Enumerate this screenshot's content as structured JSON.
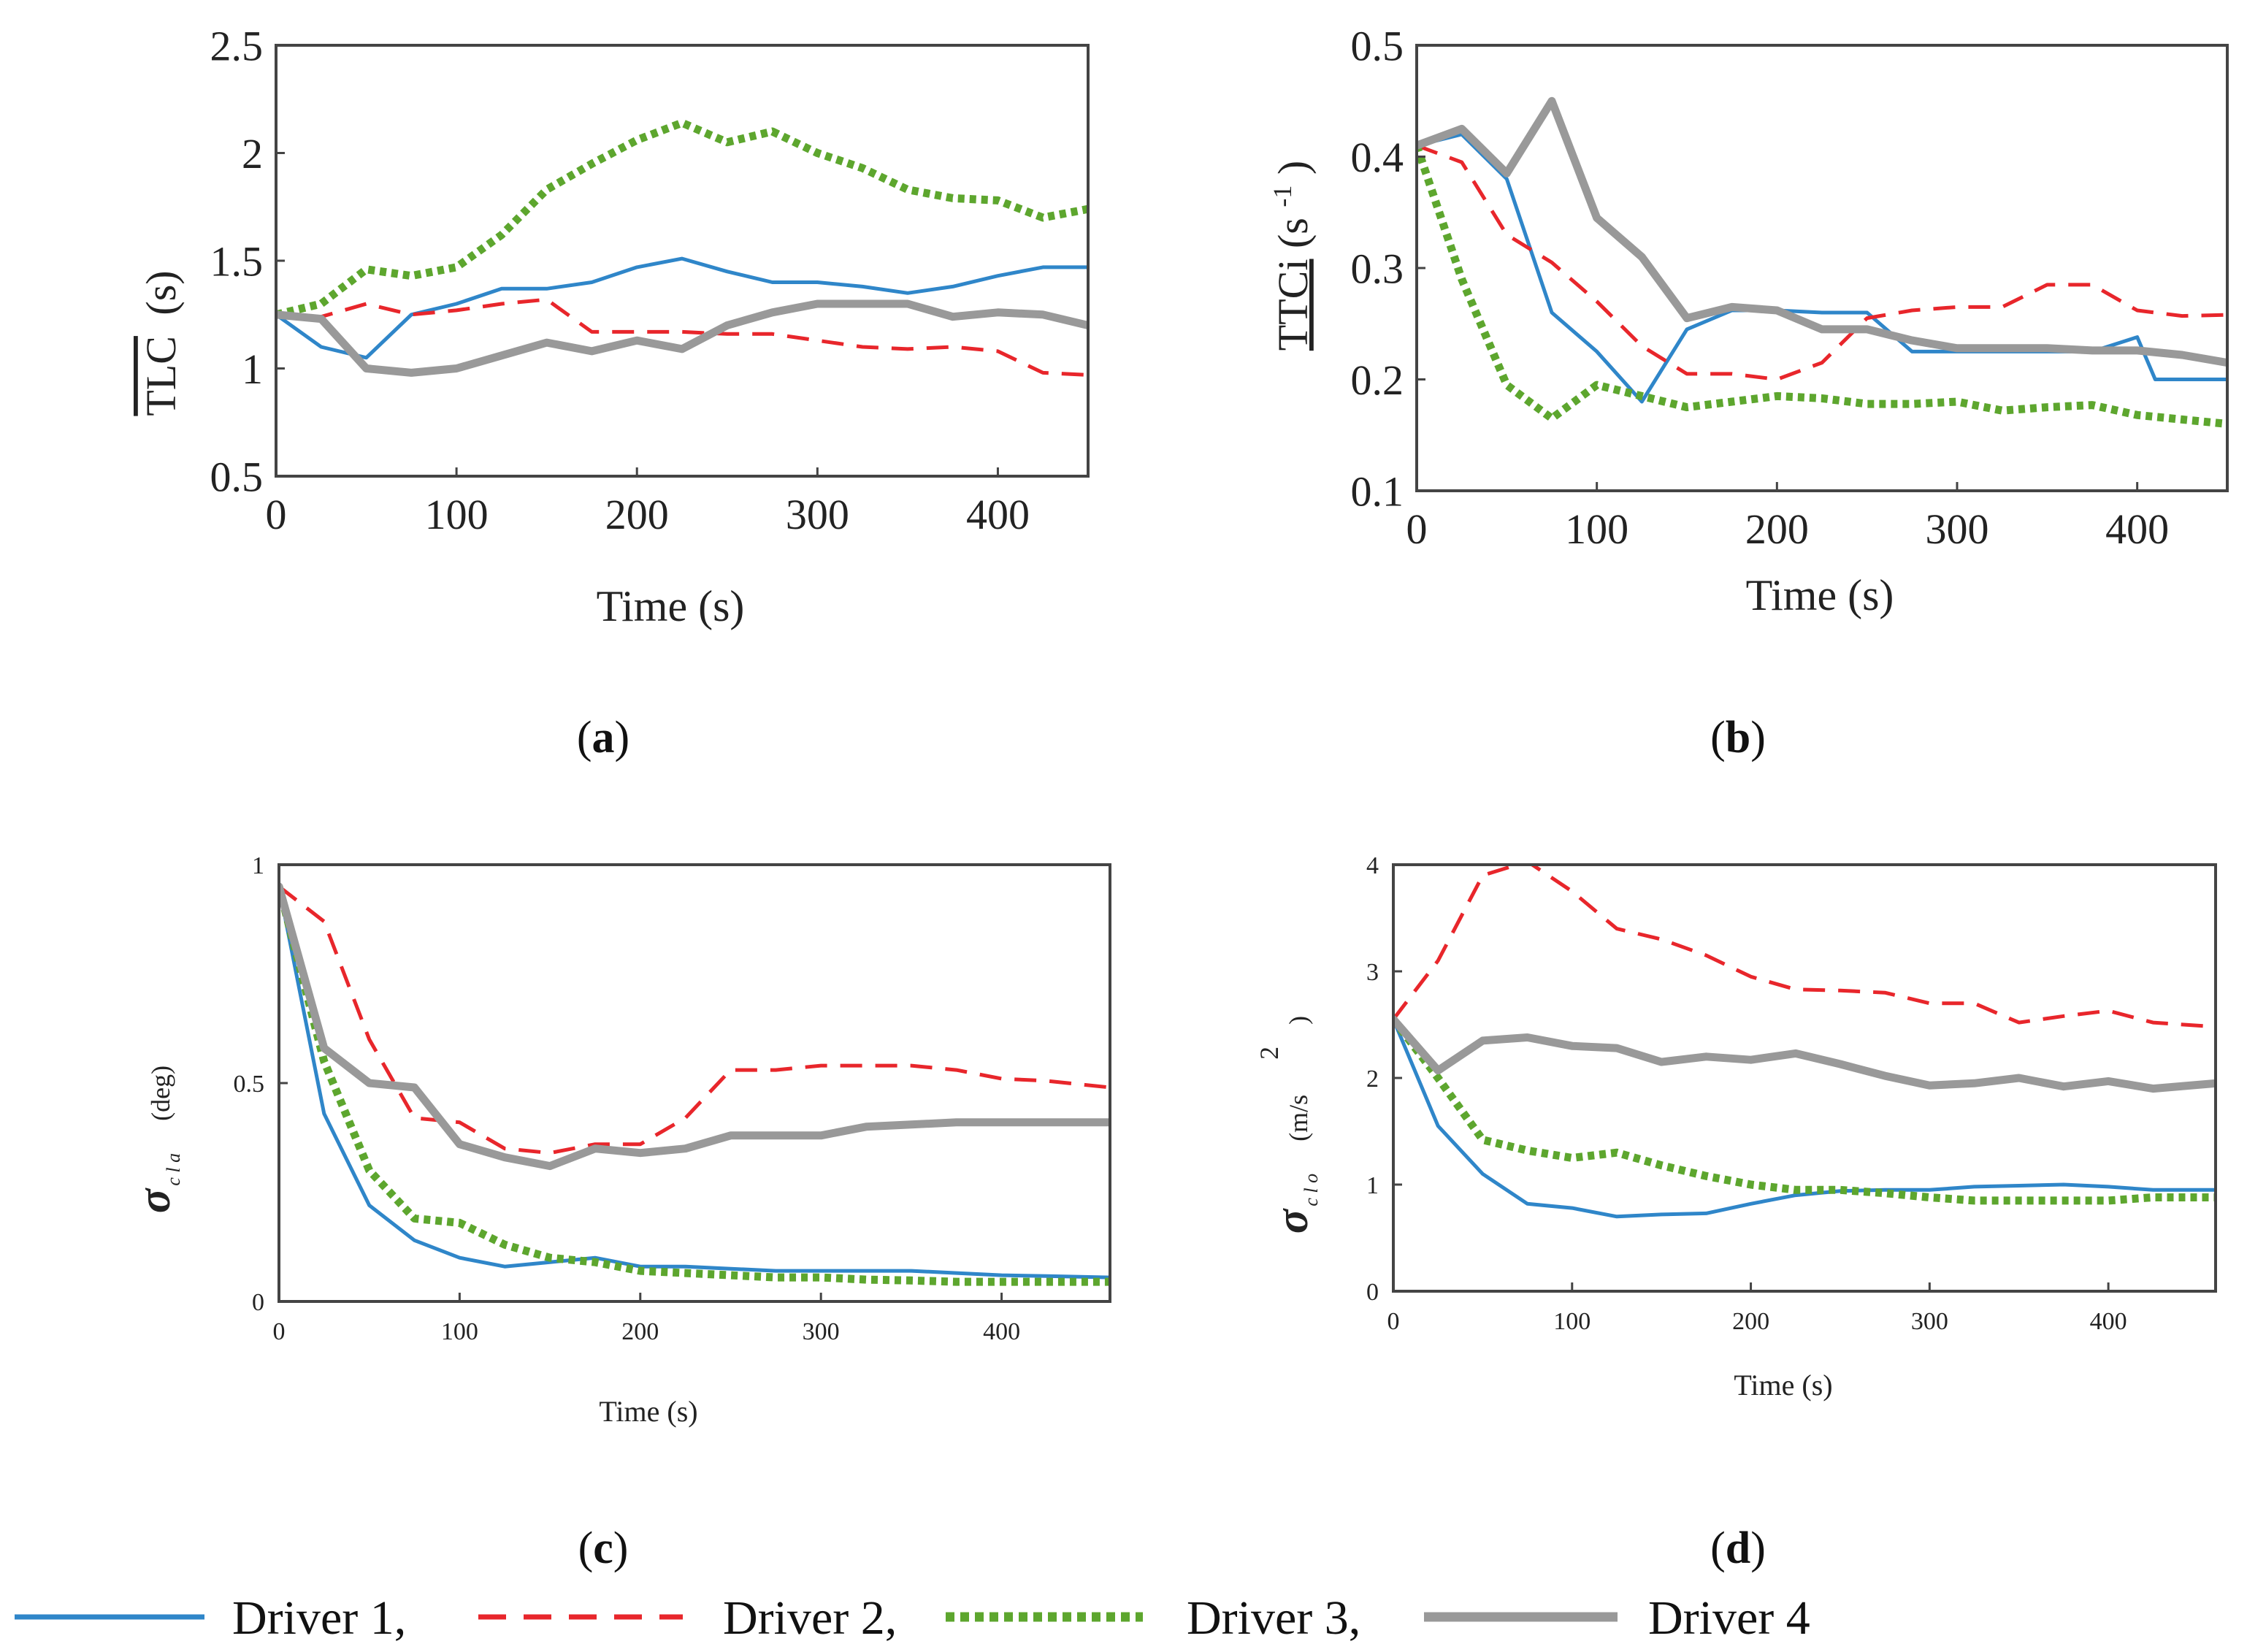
{
  "series_styles": [
    {
      "name": "Driver 1,",
      "color": "#2f86c9",
      "dash": "",
      "width": 5
    },
    {
      "name": "Driver 2,",
      "color": "#e8262b",
      "dash": "30,18",
      "width": 5
    },
    {
      "name": "Driver 3,",
      "color": "#5da62e",
      "dash": "9,7",
      "width": 11
    },
    {
      "name": "Driver 4",
      "color": "#999999",
      "dash": "",
      "width": 11
    }
  ],
  "chart_data": [
    {
      "type": "line",
      "panel": "(a)",
      "panel_letter": "a",
      "ylabel": "TLC",
      "ylabel_suffix": "(s)",
      "xlabel": "Time (s)",
      "xlim": [
        0,
        450
      ],
      "ylim": [
        0.5,
        2.5
      ],
      "xticks": [
        0,
        100,
        200,
        300,
        400
      ],
      "yticks": [
        0.5,
        1,
        1.5,
        2,
        2.5
      ],
      "ytick_labels": [
        "0.5",
        "1",
        "1.5",
        "2",
        "2.5"
      ],
      "series": [
        {
          "name": "Driver 1,",
          "x": [
            0,
            25,
            50,
            75,
            100,
            125,
            150,
            175,
            200,
            225,
            250,
            275,
            300,
            325,
            350,
            375,
            400,
            425,
            450
          ],
          "y": [
            1.25,
            1.1,
            1.05,
            1.25,
            1.3,
            1.37,
            1.37,
            1.4,
            1.47,
            1.51,
            1.45,
            1.4,
            1.4,
            1.38,
            1.35,
            1.38,
            1.43,
            1.47,
            1.47
          ]
        },
        {
          "name": "Driver 2,",
          "x": [
            0,
            25,
            50,
            75,
            100,
            125,
            150,
            175,
            200,
            225,
            250,
            275,
            300,
            325,
            350,
            375,
            400,
            425,
            450
          ],
          "y": [
            1.25,
            1.24,
            1.3,
            1.25,
            1.27,
            1.3,
            1.32,
            1.17,
            1.17,
            1.17,
            1.16,
            1.16,
            1.13,
            1.1,
            1.09,
            1.1,
            1.08,
            0.98,
            0.97
          ]
        },
        {
          "name": "Driver 3,",
          "x": [
            0,
            25,
            50,
            75,
            100,
            125,
            150,
            175,
            200,
            225,
            250,
            275,
            300,
            325,
            350,
            375,
            400,
            425,
            450
          ],
          "y": [
            1.25,
            1.3,
            1.46,
            1.43,
            1.47,
            1.62,
            1.83,
            1.95,
            2.06,
            2.14,
            2.05,
            2.1,
            2.0,
            1.93,
            1.83,
            1.79,
            1.78,
            1.7,
            1.74
          ]
        },
        {
          "name": "Driver 4",
          "x": [
            0,
            25,
            50,
            75,
            100,
            125,
            150,
            175,
            200,
            225,
            250,
            275,
            300,
            325,
            350,
            375,
            400,
            425,
            450
          ],
          "y": [
            1.25,
            1.23,
            1.0,
            0.98,
            1.0,
            1.06,
            1.12,
            1.08,
            1.13,
            1.09,
            1.2,
            1.26,
            1.3,
            1.3,
            1.3,
            1.24,
            1.26,
            1.25,
            1.2
          ]
        }
      ]
    },
    {
      "type": "line",
      "panel": "(b)",
      "panel_letter": "b",
      "ylabel": "TTCi",
      "ylabel_suffix": "(s",
      "ylabel_sup": "-1",
      "ylabel_close": ")",
      "xlabel": "Time (s)",
      "xlim": [
        0,
        450
      ],
      "ylim": [
        0.1,
        0.5
      ],
      "xticks": [
        0,
        100,
        200,
        300,
        400
      ],
      "yticks": [
        0.1,
        0.2,
        0.3,
        0.4,
        0.5
      ],
      "ytick_labels": [
        "0.1",
        "0.2",
        "0.3",
        "0.4",
        "0.5"
      ],
      "series": [
        {
          "name": "Driver 1,",
          "x": [
            0,
            25,
            50,
            75,
            100,
            125,
            150,
            175,
            200,
            225,
            250,
            275,
            300,
            325,
            350,
            375,
            400,
            410,
            450
          ],
          "y": [
            0.41,
            0.42,
            0.38,
            0.26,
            0.225,
            0.18,
            0.245,
            0.262,
            0.262,
            0.26,
            0.26,
            0.225,
            0.225,
            0.225,
            0.225,
            0.225,
            0.238,
            0.2,
            0.2
          ]
        },
        {
          "name": "Driver 2,",
          "x": [
            0,
            25,
            50,
            75,
            100,
            125,
            150,
            175,
            200,
            225,
            250,
            275,
            300,
            325,
            350,
            375,
            400,
            425,
            450
          ],
          "y": [
            0.41,
            0.395,
            0.33,
            0.305,
            0.27,
            0.23,
            0.205,
            0.205,
            0.2,
            0.215,
            0.255,
            0.262,
            0.265,
            0.265,
            0.285,
            0.285,
            0.262,
            0.257,
            0.258
          ]
        },
        {
          "name": "Driver 3,",
          "x": [
            0,
            25,
            50,
            75,
            100,
            125,
            150,
            175,
            200,
            225,
            250,
            275,
            300,
            325,
            350,
            375,
            400,
            425,
            450
          ],
          "y": [
            0.41,
            0.29,
            0.195,
            0.165,
            0.195,
            0.185,
            0.175,
            0.18,
            0.185,
            0.183,
            0.178,
            0.178,
            0.18,
            0.172,
            0.175,
            0.177,
            0.168,
            0.164,
            0.16
          ]
        },
        {
          "name": "Driver 4",
          "x": [
            0,
            25,
            50,
            75,
            100,
            125,
            150,
            175,
            200,
            225,
            250,
            275,
            300,
            325,
            350,
            375,
            400,
            425,
            450
          ],
          "y": [
            0.41,
            0.425,
            0.385,
            0.45,
            0.345,
            0.31,
            0.255,
            0.265,
            0.262,
            0.245,
            0.245,
            0.235,
            0.228,
            0.228,
            0.228,
            0.226,
            0.226,
            0.222,
            0.215
          ]
        }
      ]
    },
    {
      "type": "line",
      "panel": "(c)",
      "panel_letter": "c",
      "ylabel": "σ",
      "ylabel_sub": "c l a",
      "ylabel_unit": "(deg)",
      "xlabel": "Time (s)",
      "xlim": [
        0,
        460
      ],
      "ylim": [
        0,
        1
      ],
      "xticks": [
        0,
        100,
        200,
        300,
        400
      ],
      "yticks": [
        0,
        0.5,
        1
      ],
      "ytick_labels": [
        "0",
        "0.5",
        "1"
      ],
      "series": [
        {
          "name": "Driver 1,",
          "x": [
            0,
            25,
            50,
            75,
            100,
            125,
            150,
            175,
            200,
            225,
            250,
            275,
            300,
            325,
            350,
            375,
            400,
            425,
            460
          ],
          "y": [
            0.95,
            0.43,
            0.22,
            0.14,
            0.1,
            0.08,
            0.09,
            0.1,
            0.08,
            0.08,
            0.075,
            0.07,
            0.07,
            0.07,
            0.07,
            0.065,
            0.06,
            0.058,
            0.055
          ]
        },
        {
          "name": "Driver 2,",
          "x": [
            0,
            25,
            50,
            75,
            100,
            125,
            150,
            175,
            200,
            225,
            250,
            275,
            300,
            325,
            350,
            375,
            400,
            425,
            460
          ],
          "y": [
            0.95,
            0.87,
            0.6,
            0.42,
            0.41,
            0.35,
            0.34,
            0.36,
            0.36,
            0.42,
            0.53,
            0.53,
            0.54,
            0.54,
            0.54,
            0.53,
            0.51,
            0.505,
            0.49
          ]
        },
        {
          "name": "Driver 3,",
          "x": [
            0,
            25,
            50,
            75,
            100,
            125,
            150,
            175,
            200,
            225,
            250,
            275,
            300,
            325,
            350,
            375,
            400,
            425,
            460
          ],
          "y": [
            0.95,
            0.55,
            0.3,
            0.19,
            0.18,
            0.13,
            0.1,
            0.09,
            0.07,
            0.065,
            0.06,
            0.055,
            0.055,
            0.05,
            0.048,
            0.045,
            0.045,
            0.045,
            0.045
          ]
        },
        {
          "name": "Driver 4",
          "x": [
            0,
            25,
            50,
            75,
            100,
            125,
            150,
            175,
            200,
            225,
            250,
            275,
            300,
            325,
            350,
            375,
            400,
            425,
            460
          ],
          "y": [
            0.95,
            0.58,
            0.5,
            0.49,
            0.36,
            0.33,
            0.31,
            0.35,
            0.34,
            0.35,
            0.38,
            0.38,
            0.38,
            0.4,
            0.405,
            0.41,
            0.41,
            0.41,
            0.41
          ]
        }
      ]
    },
    {
      "type": "line",
      "panel": "(d)",
      "panel_letter": "d",
      "ylabel": "σ",
      "ylabel_sub": "c l o",
      "ylabel_unit": "(m/s",
      "ylabel_sup": "2",
      "ylabel_close": ")",
      "xlabel": "Time (s)",
      "xlim": [
        0,
        460
      ],
      "ylim": [
        0,
        4
      ],
      "xticks": [
        0,
        100,
        200,
        300,
        400
      ],
      "yticks": [
        0,
        1,
        2,
        3,
        4
      ],
      "ytick_labels": [
        "0",
        "1",
        "2",
        "3",
        "4"
      ],
      "series": [
        {
          "name": "Driver 1,",
          "x": [
            0,
            25,
            50,
            75,
            100,
            125,
            150,
            175,
            200,
            225,
            250,
            275,
            300,
            325,
            350,
            375,
            400,
            425,
            460
          ],
          "y": [
            2.55,
            1.55,
            1.1,
            0.82,
            0.78,
            0.7,
            0.72,
            0.73,
            0.82,
            0.9,
            0.94,
            0.95,
            0.95,
            0.98,
            0.99,
            1.0,
            0.98,
            0.95,
            0.95
          ]
        },
        {
          "name": "Driver 2,",
          "x": [
            0,
            25,
            50,
            75,
            100,
            125,
            150,
            175,
            200,
            225,
            250,
            275,
            300,
            325,
            350,
            375,
            400,
            425,
            460
          ],
          "y": [
            2.55,
            3.1,
            3.9,
            4.03,
            3.75,
            3.4,
            3.3,
            3.15,
            2.95,
            2.83,
            2.82,
            2.8,
            2.7,
            2.7,
            2.52,
            2.58,
            2.63,
            2.52,
            2.48
          ]
        },
        {
          "name": "Driver 3,",
          "x": [
            0,
            25,
            50,
            75,
            100,
            125,
            150,
            175,
            200,
            225,
            250,
            275,
            300,
            325,
            350,
            375,
            400,
            425,
            460
          ],
          "y": [
            2.55,
            2.0,
            1.42,
            1.32,
            1.25,
            1.3,
            1.18,
            1.08,
            1.0,
            0.95,
            0.95,
            0.92,
            0.88,
            0.85,
            0.85,
            0.85,
            0.85,
            0.88,
            0.88
          ]
        },
        {
          "name": "Driver 4",
          "x": [
            0,
            25,
            50,
            75,
            100,
            125,
            150,
            175,
            200,
            225,
            250,
            275,
            300,
            325,
            350,
            375,
            400,
            425,
            460
          ],
          "y": [
            2.55,
            2.07,
            2.35,
            2.38,
            2.3,
            2.28,
            2.15,
            2.2,
            2.17,
            2.23,
            2.13,
            2.02,
            1.93,
            1.95,
            2.0,
            1.92,
            1.97,
            1.9,
            1.95
          ]
        }
      ]
    }
  ]
}
